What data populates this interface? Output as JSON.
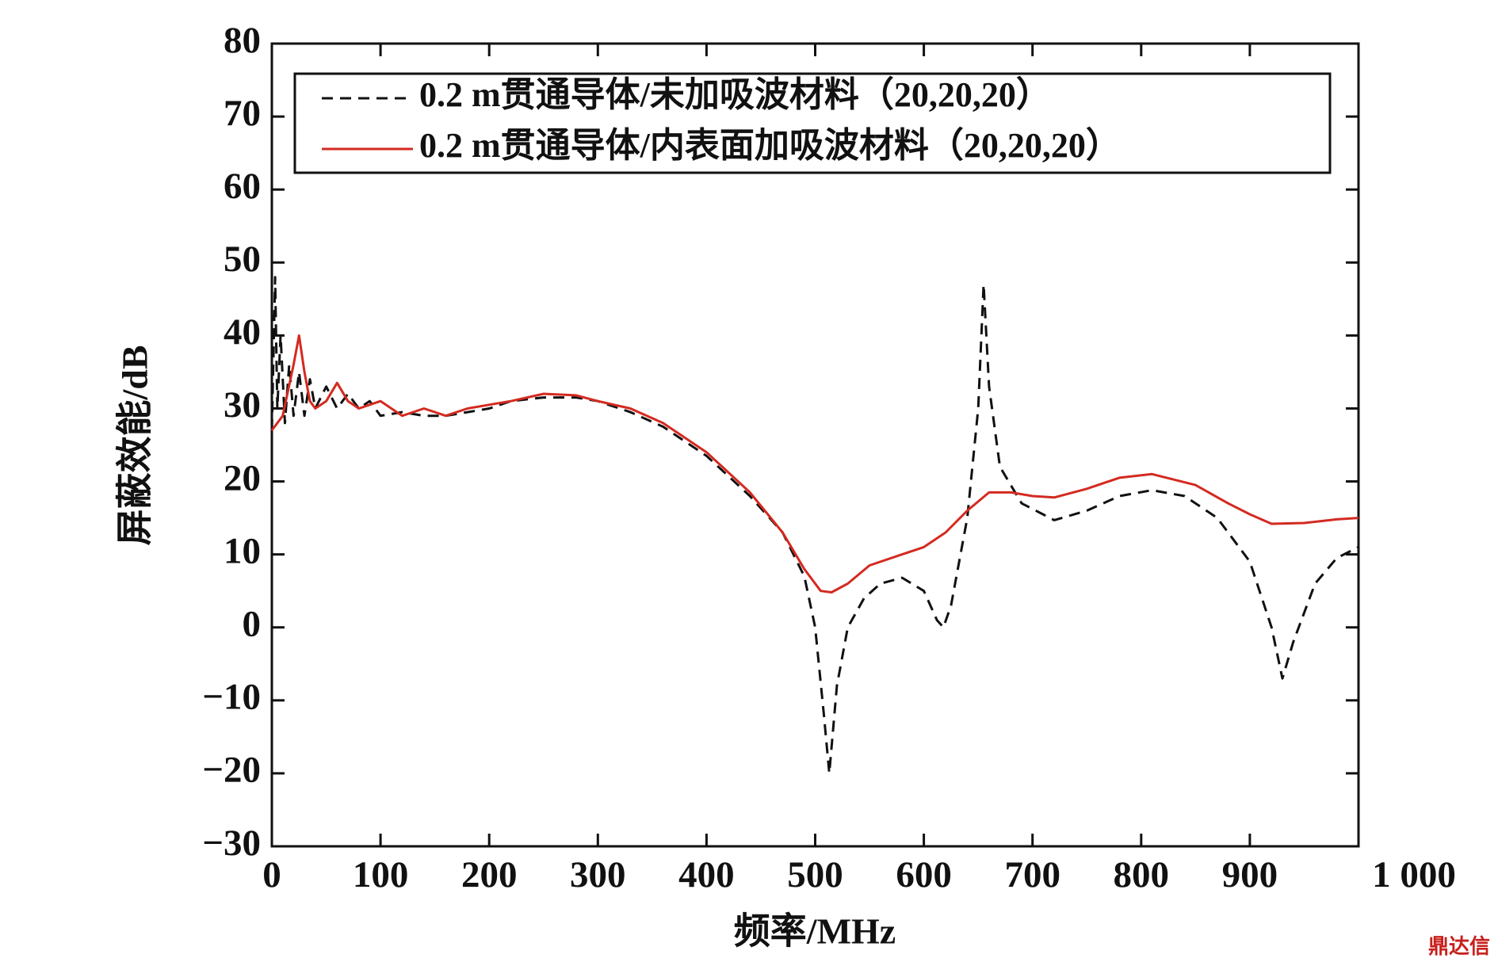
{
  "chart_data": {
    "type": "line",
    "xlabel": "频率/MHz",
    "ylabel": "屏蔽效能/dB",
    "watermark": "鼎达信",
    "xlim": [
      0,
      1000
    ],
    "ylim": [
      -30,
      80
    ],
    "xticks": [
      0,
      100,
      200,
      300,
      400,
      500,
      600,
      700,
      800,
      900,
      {
        "value": 1000,
        "label": "1 000"
      }
    ],
    "yticks": [
      {
        "value": -30,
        "label": "−30"
      },
      {
        "value": -20,
        "label": "−20"
      },
      {
        "value": -10,
        "label": "−10"
      },
      0,
      10,
      20,
      30,
      40,
      50,
      60,
      70,
      80
    ],
    "legend": "upper left",
    "series": [
      {
        "name": "0.2 m贯通导体/未加吸波材料（20,20,20）",
        "color": "#111111",
        "dash": true,
        "x": [
          0,
          3,
          5,
          8,
          12,
          16,
          20,
          25,
          30,
          35,
          40,
          50,
          60,
          70,
          80,
          90,
          100,
          120,
          140,
          160,
          180,
          200,
          220,
          250,
          280,
          300,
          330,
          360,
          400,
          440,
          470,
          490,
          500,
          508,
          513,
          520,
          530,
          545,
          560,
          580,
          600,
          612,
          618,
          625,
          640,
          650,
          655,
          660,
          670,
          690,
          720,
          750,
          780,
          810,
          840,
          870,
          900,
          920,
          930,
          940,
          960,
          980,
          1000
        ],
        "values": [
          27,
          48,
          30,
          40,
          28,
          36,
          29,
          35,
          29,
          34,
          30,
          33,
          30,
          32,
          30,
          31,
          29,
          29.5,
          29,
          29,
          29.5,
          30,
          31,
          31.5,
          31.5,
          31,
          29.5,
          27.5,
          23.5,
          18,
          13,
          7,
          0,
          -12,
          -20,
          -8,
          0,
          4,
          6,
          6.8,
          5,
          1,
          0,
          3,
          15,
          30,
          47,
          33,
          22,
          17,
          14.7,
          16,
          18,
          18.8,
          18,
          15,
          9,
          0,
          -7,
          -2,
          6,
          9.5,
          11
        ]
      },
      {
        "name": "0.2 m贯通导体/内表面加吸波材料（20,20,20）",
        "color": "#d42a20",
        "dash": false,
        "x": [
          0,
          10,
          20,
          25,
          30,
          35,
          40,
          50,
          60,
          70,
          80,
          100,
          120,
          140,
          160,
          180,
          200,
          220,
          250,
          280,
          300,
          330,
          360,
          400,
          440,
          470,
          490,
          505,
          515,
          530,
          550,
          580,
          600,
          620,
          640,
          660,
          680,
          700,
          720,
          750,
          780,
          810,
          850,
          880,
          900,
          920,
          950,
          980,
          1000
        ],
        "values": [
          27,
          29,
          36,
          40,
          35,
          31,
          30,
          31,
          33.5,
          31,
          30,
          31,
          29,
          30,
          29,
          30,
          30.5,
          31,
          32,
          31.8,
          31,
          30,
          28,
          24,
          18.5,
          13,
          8,
          5,
          4.8,
          6,
          8.5,
          10,
          11,
          13,
          16,
          18.5,
          18.5,
          18,
          17.8,
          19,
          20.5,
          21,
          19.5,
          17,
          15.5,
          14.2,
          14.3,
          14.8,
          15
        ]
      }
    ]
  }
}
